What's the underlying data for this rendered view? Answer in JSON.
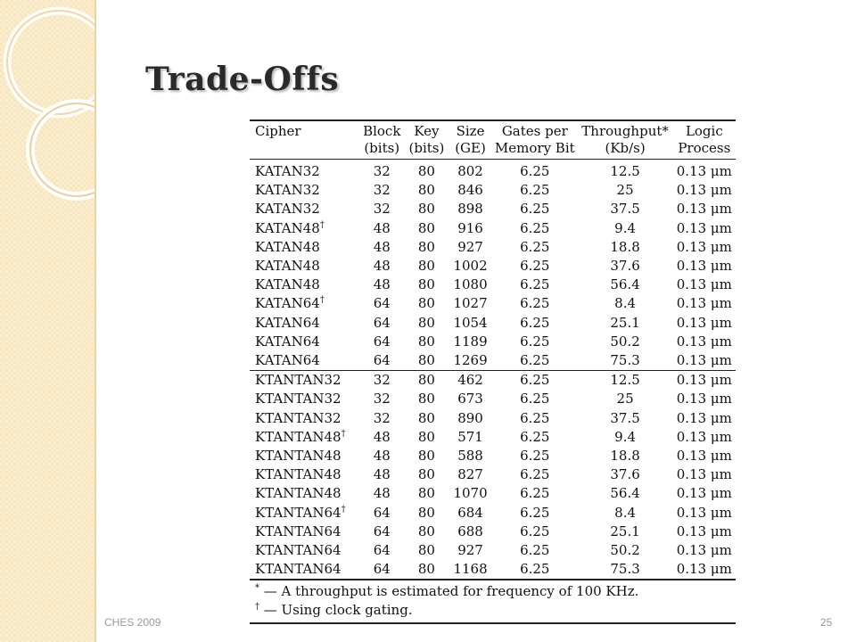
{
  "slide": {
    "title": "Trade-Offs",
    "footer_left": "CHES 2009",
    "page_number": "25"
  },
  "colors": {
    "sidebar_background": "#f6e5bd",
    "title_text": "#2a2a2a",
    "footer_text": "#9a9a9a"
  },
  "table": {
    "headers": [
      {
        "line1": "Cipher",
        "line2": ""
      },
      {
        "line1": "Block",
        "line2": "(bits)"
      },
      {
        "line1": "Key",
        "line2": "(bits)"
      },
      {
        "line1": "Size",
        "line2": "(GE)"
      },
      {
        "line1": "Gates per",
        "line2": "Memory Bit"
      },
      {
        "line1": "Throughput*",
        "line2": "(Kb/s)"
      },
      {
        "line1": "Logic",
        "line2": "Process"
      }
    ],
    "rows": [
      {
        "cipher": "KATAN32",
        "mark": "",
        "block": "32",
        "key": "80",
        "size": "802",
        "gates": "6.25",
        "throughput": "12.5",
        "process": "0.13 μm"
      },
      {
        "cipher": "KATAN32",
        "mark": "",
        "block": "32",
        "key": "80",
        "size": "846",
        "gates": "6.25",
        "throughput": "25",
        "process": "0.13 μm"
      },
      {
        "cipher": "KATAN32",
        "mark": "",
        "block": "32",
        "key": "80",
        "size": "898",
        "gates": "6.25",
        "throughput": "37.5",
        "process": "0.13 μm"
      },
      {
        "cipher": "KATAN48",
        "mark": "†",
        "block": "48",
        "key": "80",
        "size": "916",
        "gates": "6.25",
        "throughput": "9.4",
        "process": "0.13 μm"
      },
      {
        "cipher": "KATAN48",
        "mark": "",
        "block": "48",
        "key": "80",
        "size": "927",
        "gates": "6.25",
        "throughput": "18.8",
        "process": "0.13 μm"
      },
      {
        "cipher": "KATAN48",
        "mark": "",
        "block": "48",
        "key": "80",
        "size": "1002",
        "gates": "6.25",
        "throughput": "37.6",
        "process": "0.13 μm"
      },
      {
        "cipher": "KATAN48",
        "mark": "",
        "block": "48",
        "key": "80",
        "size": "1080",
        "gates": "6.25",
        "throughput": "56.4",
        "process": "0.13 μm"
      },
      {
        "cipher": "KATAN64",
        "mark": "†",
        "block": "64",
        "key": "80",
        "size": "1027",
        "gates": "6.25",
        "throughput": "8.4",
        "process": "0.13 μm"
      },
      {
        "cipher": "KATAN64",
        "mark": "",
        "block": "64",
        "key": "80",
        "size": "1054",
        "gates": "6.25",
        "throughput": "25.1",
        "process": "0.13 μm"
      },
      {
        "cipher": "KATAN64",
        "mark": "",
        "block": "64",
        "key": "80",
        "size": "1189",
        "gates": "6.25",
        "throughput": "50.2",
        "process": "0.13 μm"
      },
      {
        "cipher": "KATAN64",
        "mark": "",
        "block": "64",
        "key": "80",
        "size": "1269",
        "gates": "6.25",
        "throughput": "75.3",
        "process": "0.13 μm"
      },
      {
        "cipher": "KTANTAN32",
        "mark": "",
        "block": "32",
        "key": "80",
        "size": "462",
        "gates": "6.25",
        "throughput": "12.5",
        "process": "0.13 μm"
      },
      {
        "cipher": "KTANTAN32",
        "mark": "",
        "block": "32",
        "key": "80",
        "size": "673",
        "gates": "6.25",
        "throughput": "25",
        "process": "0.13 μm"
      },
      {
        "cipher": "KTANTAN32",
        "mark": "",
        "block": "32",
        "key": "80",
        "size": "890",
        "gates": "6.25",
        "throughput": "37.5",
        "process": "0.13 μm"
      },
      {
        "cipher": "KTANTAN48",
        "mark": "†",
        "block": "48",
        "key": "80",
        "size": "571",
        "gates": "6.25",
        "throughput": "9.4",
        "process": "0.13 μm"
      },
      {
        "cipher": "KTANTAN48",
        "mark": "",
        "block": "48",
        "key": "80",
        "size": "588",
        "gates": "6.25",
        "throughput": "18.8",
        "process": "0.13 μm"
      },
      {
        "cipher": "KTANTAN48",
        "mark": "",
        "block": "48",
        "key": "80",
        "size": "827",
        "gates": "6.25",
        "throughput": "37.6",
        "process": "0.13 μm"
      },
      {
        "cipher": "KTANTAN48",
        "mark": "",
        "block": "48",
        "key": "80",
        "size": "1070",
        "gates": "6.25",
        "throughput": "56.4",
        "process": "0.13 μm"
      },
      {
        "cipher": "KTANTAN64",
        "mark": "†",
        "block": "64",
        "key": "80",
        "size": "684",
        "gates": "6.25",
        "throughput": "8.4",
        "process": "0.13 μm"
      },
      {
        "cipher": "KTANTAN64",
        "mark": "",
        "block": "64",
        "key": "80",
        "size": "688",
        "gates": "6.25",
        "throughput": "25.1",
        "process": "0.13 μm"
      },
      {
        "cipher": "KTANTAN64",
        "mark": "",
        "block": "64",
        "key": "80",
        "size": "927",
        "gates": "6.25",
        "throughput": "50.2",
        "process": "0.13 μm"
      },
      {
        "cipher": "KTANTAN64",
        "mark": "",
        "block": "64",
        "key": "80",
        "size": "1168",
        "gates": "6.25",
        "throughput": "75.3",
        "process": "0.13 μm"
      }
    ],
    "notes": [
      {
        "mark": "*",
        "text": " — A throughput is estimated for frequency of 100 KHz."
      },
      {
        "mark": "†",
        "text": " — Using clock gating."
      }
    ]
  }
}
